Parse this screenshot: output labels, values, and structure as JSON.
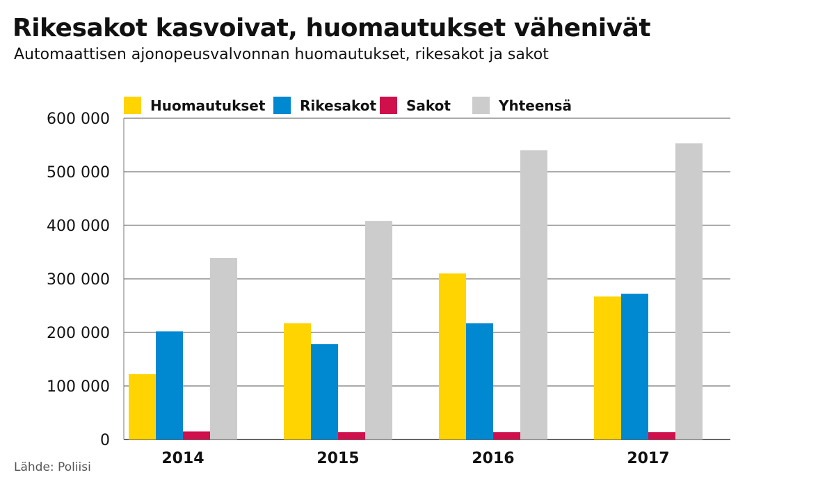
{
  "header": {
    "title": "Rikesakot kasvoivat, huomautukset vähenivät",
    "subtitle": "Automaattisen ajonopeusvalvonnan huomautukset, rikesakot ja sakot"
  },
  "footer": {
    "source": "Lähde: Poliisi"
  },
  "chart_data": {
    "type": "bar",
    "title": "Rikesakot kasvoivat, huomautukset vähenivät",
    "subtitle": "Automaattisen ajonopeusvalvonnan huomautukset, rikesakot ja sakot",
    "xlabel": "",
    "ylabel": "",
    "categories": [
      "2014",
      "2015",
      "2016",
      "2017"
    ],
    "series": [
      {
        "name": "Huomautukset",
        "color": "#FFD400",
        "values": [
          122000,
          217000,
          310000,
          267000
        ]
      },
      {
        "name": "Rikesakot",
        "color": "#0088D1",
        "values": [
          202000,
          178000,
          217000,
          272000
        ]
      },
      {
        "name": "Sakot",
        "color": "#D0104C",
        "values": [
          15000,
          14000,
          14000,
          14000
        ]
      },
      {
        "name": "Yhteensä",
        "color": "#CCCCCC",
        "values": [
          339000,
          408000,
          540000,
          553000
        ]
      }
    ],
    "ylim": [
      0,
      600000
    ],
    "yticks": [
      0,
      100000,
      200000,
      300000,
      400000,
      500000,
      600000
    ],
    "ytick_labels": [
      "0",
      "100 000",
      "200 000",
      "300 000",
      "400 000",
      "500 000",
      "600 000"
    ],
    "grid": true,
    "legend": "top-left"
  }
}
